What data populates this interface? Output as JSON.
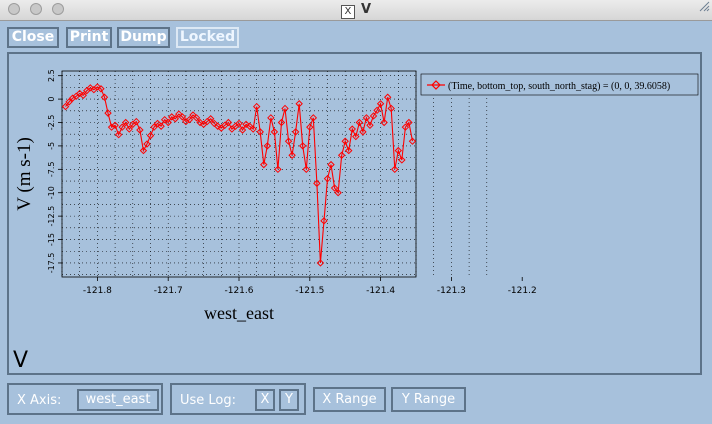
{
  "window": {
    "title": "V",
    "x_logo": "X"
  },
  "toolbar": {
    "close": "Close",
    "print": "Print",
    "dump": "Dump",
    "locked": "Locked"
  },
  "plot": {
    "big_label": "V"
  },
  "bottom": {
    "x_axis_label": "X Axis:",
    "x_axis_value": "west_east",
    "use_log_label": "Use Log:",
    "log_x": "X",
    "log_y": "Y",
    "x_range": "X Range",
    "y_range": "Y Range"
  },
  "colors": {
    "background": "#a7c1dc",
    "series": "#ff0000",
    "border": "#5d7389"
  },
  "chart_data": {
    "type": "line",
    "xlabel": "west_east",
    "ylabel": "V (m s-1)",
    "xlim": [
      -121.85,
      -121.35
    ],
    "ylim": [
      -19,
      3
    ],
    "x_ticks": [
      "-121.8",
      "-121.7",
      "-121.6",
      "-121.5",
      "-121.4",
      "-121.3",
      "-121.2"
    ],
    "y_ticks": [
      "2.5",
      "0",
      "-2.5",
      "-5",
      "-7.5",
      "-10",
      "-12.5",
      "-15",
      "-17.5"
    ],
    "grid": true,
    "legend_position": "right",
    "series": [
      {
        "name": "(Time, bottom_top, south_north_stag) = (0, 0, 39.6058)",
        "color": "#ff0000",
        "marker": "diamond",
        "x": [
          -121.845,
          -121.84,
          -121.835,
          -121.83,
          -121.825,
          -121.82,
          -121.815,
          -121.81,
          -121.805,
          -121.8,
          -121.795,
          -121.79,
          -121.785,
          -121.78,
          -121.775,
          -121.77,
          -121.765,
          -121.76,
          -121.755,
          -121.75,
          -121.745,
          -121.74,
          -121.735,
          -121.73,
          -121.725,
          -121.72,
          -121.715,
          -121.71,
          -121.705,
          -121.7,
          -121.695,
          -121.69,
          -121.685,
          -121.68,
          -121.675,
          -121.67,
          -121.665,
          -121.66,
          -121.655,
          -121.65,
          -121.645,
          -121.64,
          -121.635,
          -121.63,
          -121.625,
          -121.62,
          -121.615,
          -121.61,
          -121.605,
          -121.6,
          -121.595,
          -121.59,
          -121.585,
          -121.58,
          -121.575,
          -121.57,
          -121.565,
          -121.56,
          -121.555,
          -121.55,
          -121.545,
          -121.54,
          -121.535,
          -121.53,
          -121.525,
          -121.52,
          -121.515,
          -121.51,
          -121.505,
          -121.5,
          -121.495,
          -121.49,
          -121.485,
          -121.48,
          -121.475,
          -121.47,
          -121.465,
          -121.46,
          -121.455,
          -121.45,
          -121.445,
          -121.44,
          -121.435,
          -121.43,
          -121.425,
          -121.42,
          -121.415,
          -121.41,
          -121.405,
          -121.4,
          -121.395,
          -121.39,
          -121.385,
          -121.38,
          -121.375,
          -121.37,
          -121.365,
          -121.36,
          -121.355
        ],
        "values": [
          -0.8,
          -0.3,
          0.1,
          0.3,
          0.6,
          0.4,
          0.9,
          1.2,
          1.0,
          1.3,
          1.1,
          0.2,
          -1.5,
          -3.0,
          -2.8,
          -3.8,
          -3.0,
          -2.5,
          -3.2,
          -2.7,
          -2.4,
          -3.3,
          -5.5,
          -4.8,
          -3.9,
          -3.0,
          -2.6,
          -2.9,
          -2.2,
          -2.5,
          -1.9,
          -2.1,
          -1.6,
          -1.9,
          -2.4,
          -2.2,
          -1.7,
          -2.0,
          -2.5,
          -2.7,
          -2.4,
          -2.1,
          -2.6,
          -2.9,
          -3.1,
          -2.8,
          -2.5,
          -3.2,
          -2.9,
          -2.6,
          -3.3,
          -2.7,
          -2.9,
          -3.2,
          -0.8,
          -3.5,
          -7.0,
          -5.0,
          -2.0,
          -3.5,
          -7.5,
          -2.5,
          -1.0,
          -4.5,
          -6.0,
          -3.5,
          -0.5,
          -5.0,
          -7.5,
          -3.0,
          -2.0,
          -9.0,
          -17.5,
          -13.0,
          -8.5,
          -7.0,
          -9.5,
          -10.0,
          -6.0,
          -4.5,
          -5.5,
          -3.2,
          -4.0,
          -2.5,
          -3.5,
          -2.0,
          -2.8,
          -1.8,
          -1.2,
          -0.5,
          -2.5,
          0.2,
          -1.0,
          -7.5,
          -5.5,
          -6.5,
          -3.0,
          -2.5,
          -4.5
        ]
      }
    ]
  }
}
